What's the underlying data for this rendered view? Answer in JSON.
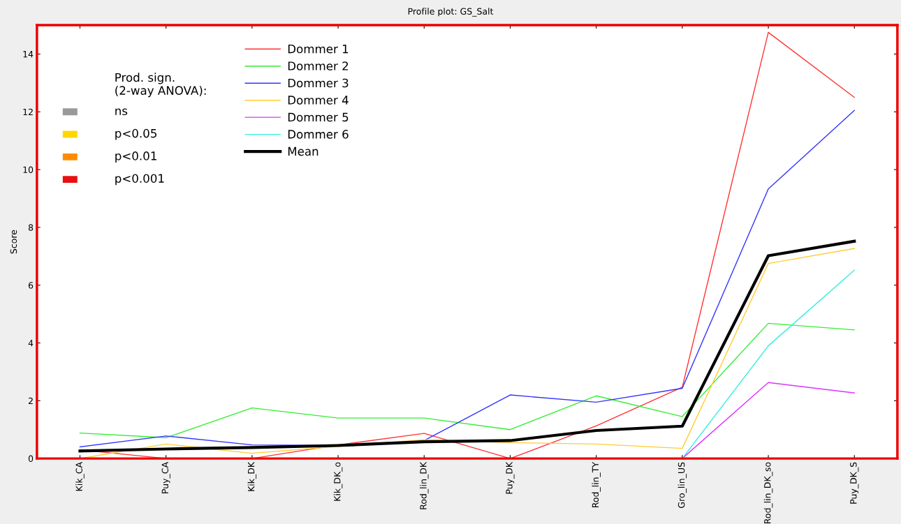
{
  "chart_data": {
    "type": "line",
    "title": "Profile plot: GS_Salt",
    "ylabel": "Score",
    "categories": [
      "Kik_CA",
      "Puy_CA",
      "Kik_DK",
      "Kik_DK_o",
      "Rod_lin_DK",
      "Puy_DK",
      "Rod_lin_TY",
      "Gro_lin_US",
      "Rod_lin_DK_so",
      "Puy_DK_S"
    ],
    "ylim": [
      0,
      15
    ],
    "yticks": [
      0,
      2,
      4,
      6,
      8,
      10,
      12,
      14
    ],
    "legend": "top left",
    "grid": false,
    "annotations": [
      "Prod. sign.\n(2-way ANOVA):",
      "ns",
      "p<0.05",
      "p<0.01",
      "p<0.001"
    ],
    "series": [
      {
        "name": "Dommer 1",
        "color": "#ff3333",
        "values": [
          0.3,
          0,
          0,
          0.47,
          0.87,
          0,
          1.13,
          2.47,
          14.75,
          12.5
        ]
      },
      {
        "name": "Dommer 2",
        "color": "#33ee33",
        "values": [
          0.88,
          0.72,
          1.75,
          1.4,
          1.4,
          1.0,
          2.17,
          1.45,
          4.68,
          4.45
        ]
      },
      {
        "name": "Dommer 3",
        "color": "#3333ff",
        "values": [
          0.4,
          0.78,
          0.47,
          0.45,
          0.62,
          2.2,
          1.95,
          2.43,
          9.33,
          12.05
        ]
      },
      {
        "name": "Dommer 4",
        "color": "#ffcc33",
        "values": [
          0,
          0.5,
          0.18,
          0.42,
          0.65,
          0.55,
          0.5,
          0.35,
          6.75,
          7.27
        ]
      },
      {
        "name": "Dommer 5",
        "color": "#dd33ff",
        "values": [
          null,
          null,
          null,
          null,
          null,
          null,
          null,
          0,
          2.63,
          2.27
        ]
      },
      {
        "name": "Dommer 6",
        "color": "#33eedd",
        "values": [
          null,
          null,
          null,
          null,
          null,
          null,
          null,
          0,
          3.9,
          6.52
        ]
      },
      {
        "name": "Mean",
        "color": "#000000",
        "values": [
          0.26,
          0.33,
          0.38,
          0.45,
          0.58,
          0.62,
          0.97,
          1.12,
          7.02,
          7.52
        ]
      }
    ]
  }
}
